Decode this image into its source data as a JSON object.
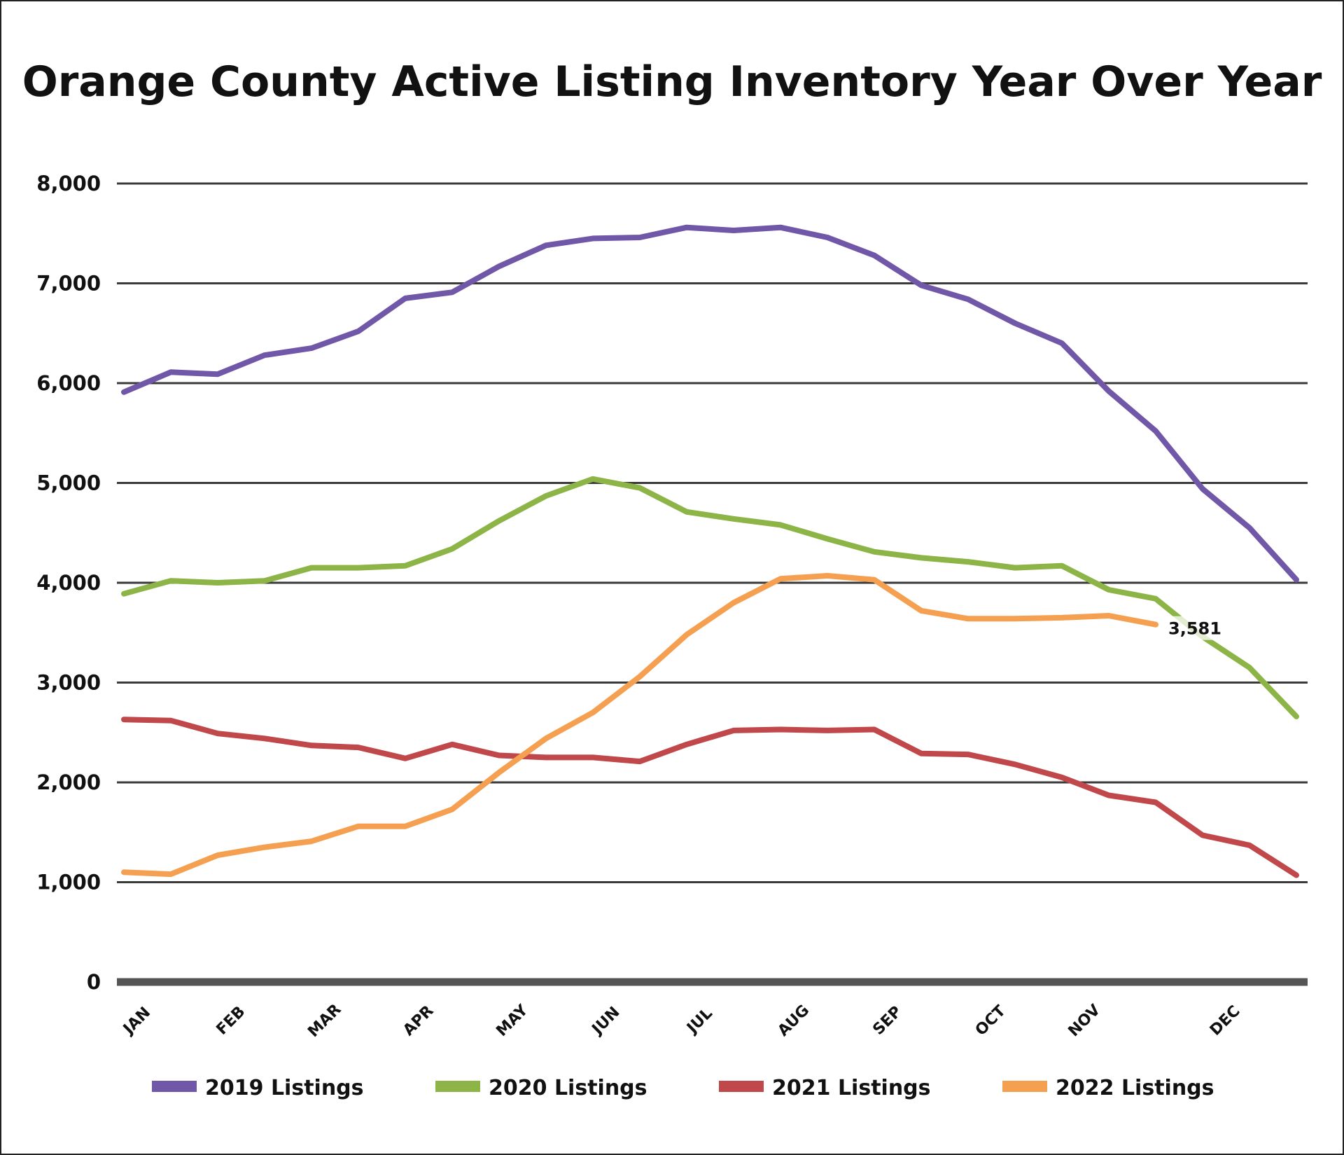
{
  "chart_data": {
    "type": "line",
    "title": "Orange County Active Listing Inventory Year Over Year",
    "xlabel": "",
    "ylabel": "",
    "ylim": [
      0,
      8000
    ],
    "y_ticks": [
      0,
      1000,
      2000,
      3000,
      4000,
      5000,
      6000,
      7000,
      8000
    ],
    "y_tick_labels": [
      "0",
      "1,000",
      "2,000",
      "3,000",
      "4,000",
      "5,000",
      "6,000",
      "7,000",
      "8,000"
    ],
    "x_tick_labels": [
      "JAN",
      "FEB",
      "MAR",
      "APR",
      "MAY",
      "JUN",
      "JUL",
      "AUG",
      "SEP",
      "OCT",
      "NOV",
      "DEC"
    ],
    "x_points": 26,
    "grid": true,
    "legend_position": "bottom",
    "series": [
      {
        "name": "2019 Listings",
        "color": "#7057a8",
        "values": [
          5910,
          6110,
          6090,
          6280,
          6350,
          6520,
          6850,
          6910,
          7170,
          7380,
          7450,
          7460,
          7560,
          7530,
          7560,
          7460,
          7280,
          6980,
          6840,
          6600,
          6400,
          5920,
          5520,
          4940,
          4550,
          4030
        ]
      },
      {
        "name": "2020 Listings",
        "color": "#8db446",
        "values": [
          3890,
          4020,
          4000,
          4020,
          4150,
          4150,
          4170,
          4340,
          4620,
          4870,
          5040,
          4950,
          4710,
          4640,
          4580,
          4440,
          4310,
          4250,
          4210,
          4150,
          4170,
          3930,
          3840,
          3460,
          3150,
          2660
        ]
      },
      {
        "name": "2021 Listings",
        "color": "#c0474a",
        "values": [
          2630,
          2620,
          2490,
          2440,
          2370,
          2350,
          2240,
          2380,
          2270,
          2250,
          2250,
          2210,
          2380,
          2520,
          2530,
          2520,
          2530,
          2290,
          2280,
          2180,
          2050,
          1870,
          1800,
          1470,
          1370,
          1070
        ]
      },
      {
        "name": "2022 Listings",
        "color": "#f59f50",
        "values": [
          1100,
          1080,
          1270,
          1350,
          1410,
          1560,
          1560,
          1730,
          2100,
          2440,
          2700,
          3060,
          3480,
          3800,
          4040,
          4070,
          4030,
          3720,
          3640,
          3640,
          3650,
          3670,
          3581
        ]
      }
    ],
    "annotation": {
      "text": "3,581",
      "series": "2022 Listings",
      "value": 3581
    }
  }
}
